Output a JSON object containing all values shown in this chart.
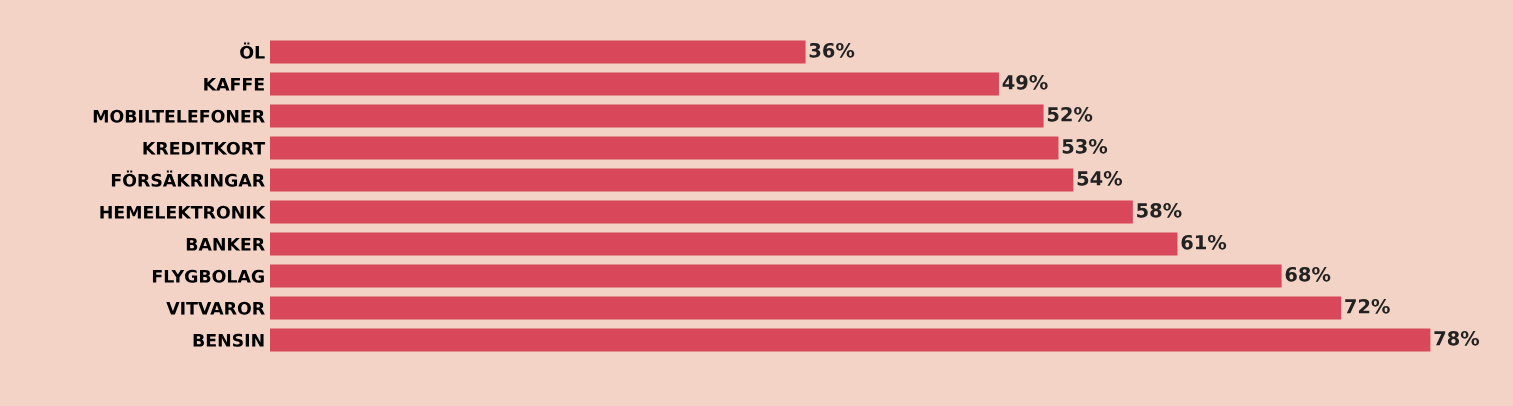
{
  "chart_data": {
    "type": "bar",
    "orientation": "horizontal",
    "categories": [
      "ÖL",
      "KAFFE",
      "MOBILTELEFONER",
      "KREDITKORT",
      "FÖRSÄKRINGAR",
      "HEMELEKTRONIK",
      "BANKER",
      "FLYGBOLAG",
      "VITVAROR",
      "BENSIN"
    ],
    "values": [
      36,
      49,
      52,
      53,
      54,
      58,
      61,
      68,
      72,
      78
    ],
    "value_labels": [
      "36%",
      "49%",
      "52%",
      "53%",
      "54%",
      "58%",
      "61%",
      "68%",
      "72%",
      "78%"
    ],
    "color": "#d9485a",
    "tick_labels": "y",
    "grid": false,
    "legend": false
  }
}
